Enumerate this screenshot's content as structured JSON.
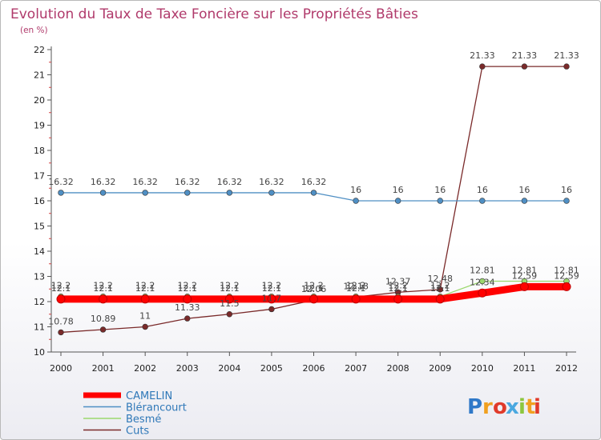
{
  "chart_data": {
    "type": "line",
    "title": "Evolution du Taux de Taxe Foncière sur les Propriétés Bâties",
    "subtitle": "(en %)",
    "xlabel": "",
    "ylabel": "",
    "ylim": [
      10,
      22
    ],
    "yticks": [
      10,
      11,
      12,
      13,
      14,
      15,
      16,
      17,
      18,
      19,
      20,
      21,
      22
    ],
    "x": [
      "2000",
      "2001",
      "2002",
      "2003",
      "2004",
      "2005",
      "2006",
      "2007",
      "2008",
      "2009",
      "2010",
      "2011",
      "2012"
    ],
    "grid": false,
    "legend_position": "bottom-left",
    "series": [
      {
        "name": "CAMELIN",
        "color": "#ff0000",
        "values": [
          12.1,
          12.1,
          12.1,
          12.1,
          12.1,
          12.1,
          12.1,
          12.1,
          12.1,
          12.1,
          12.34,
          12.59,
          12.59
        ],
        "labels": [
          "12.1",
          "12.1",
          "12.1",
          "12.1",
          "12.1",
          "12.1",
          "12.1",
          "12.1",
          "12.1",
          "12.1",
          "12.34",
          "12.59",
          "12.59"
        ]
      },
      {
        "name": "Blérancourt",
        "color": "#4f8fc4",
        "values": [
          16.32,
          16.32,
          16.32,
          16.32,
          16.32,
          16.32,
          16.32,
          16,
          16,
          16,
          16,
          16,
          16
        ],
        "labels": [
          "16.32",
          "16.32",
          "16.32",
          "16.32",
          "16.32",
          "16.32",
          "16.32",
          "16",
          "16",
          "16",
          "16",
          "16",
          "16"
        ]
      },
      {
        "name": "Besmé",
        "color": "#9cd86e",
        "values": [
          12.2,
          12.2,
          12.2,
          12.2,
          12.2,
          12.2,
          12.2,
          12.2,
          12.2,
          12.2,
          12.81,
          12.81,
          12.81
        ],
        "labels": [
          "12.2",
          "12.2",
          "12.2",
          "12.2",
          "12.2",
          "12.2",
          "12.2",
          "12.2",
          "12.2",
          "12.2",
          "12.81",
          "12.81",
          "12.81"
        ]
      },
      {
        "name": "Cuts",
        "color": "#7a2a2a",
        "values": [
          10.78,
          10.89,
          11,
          11.33,
          11.5,
          11.7,
          12.06,
          12.18,
          12.37,
          12.48,
          21.33,
          21.33,
          21.33
        ],
        "labels": [
          "10.78",
          "10.89",
          "11",
          "11.33",
          "11.5",
          "11.7",
          "12.06",
          "12.18",
          "12.37",
          "12.48",
          "21.33",
          "21.33",
          "21.33"
        ]
      }
    ]
  },
  "logo": {
    "letters": [
      "P",
      "r",
      "o",
      "x",
      "i",
      "t",
      "i"
    ],
    "colors": [
      "#2f78c8",
      "#f0a020",
      "#e03a2a",
      "#4aa8e0",
      "#8cc63e",
      "#f0a020",
      "#e03a2a"
    ]
  }
}
